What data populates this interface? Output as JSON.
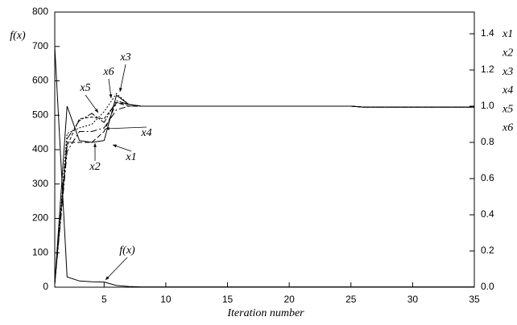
{
  "chart_data": {
    "type": "line",
    "y_label": "f(x)",
    "x_label": "Iteration number",
    "x": [
      1,
      2,
      3,
      4,
      5,
      6,
      7,
      8,
      9,
      10,
      11,
      12,
      13,
      14,
      15,
      16,
      17,
      18,
      19,
      20,
      21,
      22,
      23,
      24,
      25,
      26,
      27,
      28,
      29,
      30,
      31,
      32,
      33,
      34,
      35
    ],
    "xlim": [
      1,
      35
    ],
    "xticks": [
      5,
      10,
      15,
      20,
      25,
      30,
      35
    ],
    "ylim": [
      0,
      800
    ],
    "yticks": [
      0,
      100,
      200,
      300,
      400,
      500,
      600,
      700,
      800
    ],
    "y2lim": [
      0,
      1.52
    ],
    "y2ticks": [
      {
        "value": 0,
        "label": "0.0"
      },
      0.2,
      0.4,
      0.6,
      0.8,
      {
        "value": 1,
        "label": "1.0"
      },
      1.2,
      1.4
    ],
    "series": [
      {
        "name": "f(x)",
        "color": "#000000",
        "dash": "none",
        "values": [
          700,
          30,
          18,
          16,
          15,
          5,
          2,
          1,
          1,
          1,
          1,
          1,
          1,
          1,
          1,
          1,
          1,
          1,
          1,
          1,
          1,
          1,
          1,
          1,
          1,
          1,
          1,
          1,
          1,
          1,
          1,
          1,
          1,
          1,
          1
        ]
      },
      {
        "name": "x1",
        "axis": "y2",
        "color": "#000000",
        "dash": "none",
        "values": [
          0.02,
          1.0,
          0.81,
          0.8,
          0.81,
          1.06,
          1.01,
          1.0,
          1.0,
          1.0,
          1.0,
          1.0,
          1.0,
          1.0,
          1.0,
          1.0,
          1.0,
          1.0,
          1.0,
          1.0,
          1.0,
          1.0,
          1.0,
          1.0,
          1.0,
          0.995,
          0.995,
          0.995,
          0.995,
          0.995,
          0.995,
          0.995,
          0.995,
          0.995,
          0.995
        ]
      },
      {
        "name": "x2",
        "axis": "y2",
        "color": "#000000",
        "dash": "6 3",
        "values": [
          0.02,
          0.8,
          0.8,
          0.8,
          0.86,
          1.02,
          1.0,
          1.0,
          1.0,
          1.0,
          1.0,
          1.0,
          1.0,
          1.0,
          1.0,
          1.0,
          1.0,
          1.0,
          1.0,
          1.0,
          1.0,
          1.0,
          1.0,
          1.0,
          1.0,
          0.995,
          0.995,
          0.995,
          0.995,
          0.995,
          0.995,
          0.995,
          0.995,
          0.995,
          0.995
        ]
      },
      {
        "name": "x3",
        "axis": "y2",
        "color": "#000000",
        "dash": "2 2",
        "values": [
          0.02,
          0.85,
          0.88,
          0.9,
          0.97,
          1.07,
          1.01,
          1.0,
          1.0,
          1.0,
          1.0,
          1.0,
          1.0,
          1.0,
          1.0,
          1.0,
          1.0,
          1.0,
          1.0,
          1.0,
          1.0,
          1.0,
          1.0,
          1.0,
          1.0,
          0.995,
          0.995,
          0.995,
          0.995,
          0.995,
          0.995,
          0.995,
          0.995,
          0.995,
          0.995
        ]
      },
      {
        "name": "x4",
        "axis": "y2",
        "color": "#000000",
        "dash": "8 3 2 3",
        "values": [
          0.02,
          0.75,
          0.86,
          0.86,
          0.88,
          0.98,
          1.0,
          1.0,
          1.0,
          1.0,
          1.0,
          1.0,
          1.0,
          1.0,
          1.0,
          1.0,
          1.0,
          1.0,
          1.0,
          1.0,
          1.0,
          1.0,
          1.0,
          1.0,
          1.0,
          0.995,
          0.995,
          0.995,
          0.995,
          0.995,
          0.995,
          0.995,
          0.995,
          0.995,
          0.995
        ]
      },
      {
        "name": "x5",
        "axis": "y2",
        "color": "#000000",
        "dash": "4 2",
        "values": [
          0.02,
          0.78,
          0.93,
          0.94,
          0.93,
          1.02,
          1.01,
          1.0,
          1.0,
          1.0,
          1.0,
          1.0,
          1.0,
          1.0,
          1.0,
          1.0,
          1.0,
          1.0,
          1.0,
          1.0,
          1.0,
          1.0,
          1.0,
          1.0,
          1.0,
          0.995,
          0.995,
          0.995,
          0.995,
          0.995,
          0.995,
          0.995,
          0.995,
          0.995,
          0.995
        ]
      },
      {
        "name": "x6",
        "axis": "y2",
        "color": "#000000",
        "dash": "10 2 2 2 2 2",
        "values": [
          0.02,
          0.82,
          0.92,
          0.96,
          0.91,
          1.03,
          1.01,
          1.0,
          1.0,
          1.0,
          1.0,
          1.0,
          1.0,
          1.0,
          1.0,
          1.0,
          1.0,
          1.0,
          1.0,
          1.0,
          1.0,
          1.0,
          1.0,
          1.0,
          1.0,
          0.995,
          0.995,
          0.995,
          0.995,
          0.995,
          0.995,
          0.995,
          0.995,
          0.995,
          0.995
        ]
      }
    ]
  }
}
